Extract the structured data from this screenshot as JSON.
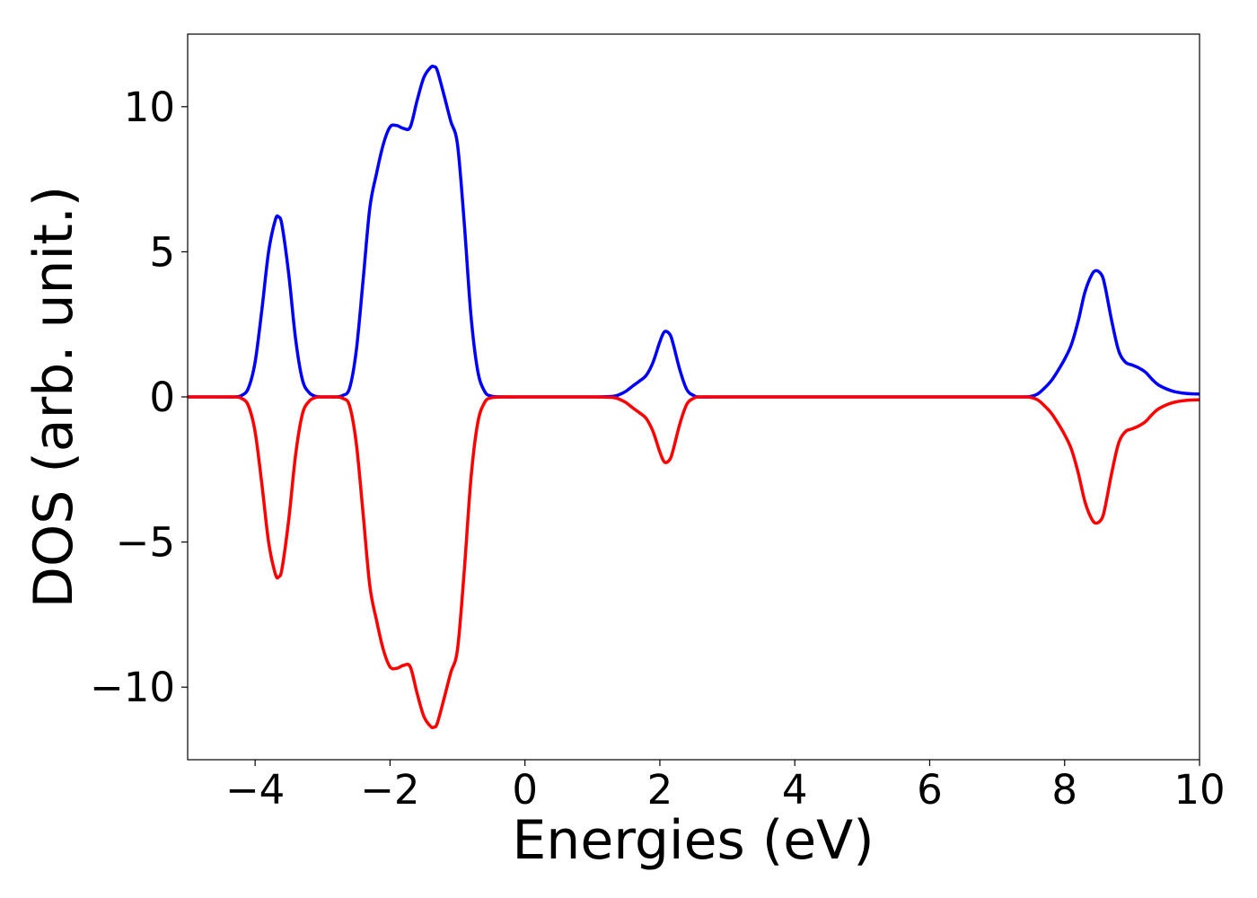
{
  "chart_data": {
    "type": "line",
    "title": "",
    "xlabel": "Energies (eV)",
    "ylabel": "DOS (arb. unit.)",
    "xlim": [
      -5,
      10
    ],
    "ylim": [
      -12.5,
      12.5
    ],
    "xticks": [
      -4,
      -2,
      0,
      2,
      4,
      6,
      8,
      10
    ],
    "xtick_labels": [
      "−4",
      "−2",
      "0",
      "2",
      "4",
      "6",
      "8",
      "10"
    ],
    "yticks": [
      -10,
      -5,
      0,
      5,
      10
    ],
    "ytick_labels": [
      "−10",
      "−5",
      "0",
      "5",
      "10"
    ],
    "grid": false,
    "legend": "none",
    "series": [
      {
        "color": "#0000ff",
        "x": [
          -5.0,
          -4.5,
          -4.3,
          -4.2,
          -4.1,
          -4.0,
          -3.9,
          -3.8,
          -3.7,
          -3.65,
          -3.6,
          -3.5,
          -3.4,
          -3.3,
          -3.2,
          -3.1,
          -3.0,
          -2.9,
          -2.8,
          -2.7,
          -2.6,
          -2.5,
          -2.4,
          -2.3,
          -2.2,
          -2.1,
          -2.0,
          -1.9,
          -1.8,
          -1.7,
          -1.6,
          -1.5,
          -1.4,
          -1.35,
          -1.3,
          -1.2,
          -1.1,
          -1.0,
          -0.9,
          -0.8,
          -0.7,
          -0.6,
          -0.5,
          -0.3,
          0.0,
          0.5,
          1.0,
          1.3,
          1.4,
          1.5,
          1.6,
          1.7,
          1.8,
          1.9,
          2.0,
          2.07,
          2.15,
          2.2,
          2.3,
          2.4,
          2.5,
          2.6,
          3.0,
          5.0,
          7.0,
          7.4,
          7.5,
          7.6,
          7.7,
          7.8,
          7.9,
          8.0,
          8.1,
          8.2,
          8.3,
          8.4,
          8.47,
          8.55,
          8.6,
          8.7,
          8.8,
          8.9,
          9.0,
          9.1,
          9.2,
          9.3,
          9.4,
          9.6,
          9.8,
          10.0
        ],
        "y": [
          0.0,
          0.0,
          0.0,
          0.05,
          0.3,
          1.2,
          3.0,
          5.0,
          6.1,
          6.2,
          5.9,
          4.2,
          2.0,
          0.6,
          0.15,
          0.02,
          0.0,
          0.0,
          0.0,
          0.05,
          0.3,
          1.6,
          4.0,
          6.5,
          7.7,
          8.7,
          9.3,
          9.35,
          9.25,
          9.3,
          10.2,
          11.0,
          11.35,
          11.38,
          11.25,
          10.4,
          9.5,
          8.7,
          6.0,
          2.8,
          0.9,
          0.2,
          0.03,
          0.0,
          0.0,
          0.0,
          0.0,
          0.02,
          0.08,
          0.2,
          0.38,
          0.55,
          0.75,
          1.2,
          1.9,
          2.25,
          2.15,
          1.8,
          0.9,
          0.25,
          0.05,
          0.0,
          0.0,
          0.0,
          0.0,
          0.0,
          0.02,
          0.1,
          0.3,
          0.55,
          0.9,
          1.3,
          1.8,
          2.6,
          3.6,
          4.2,
          4.35,
          4.2,
          3.8,
          2.6,
          1.6,
          1.2,
          1.1,
          1.0,
          0.85,
          0.6,
          0.4,
          0.2,
          0.12,
          0.1
        ]
      },
      {
        "color": "#ff0000",
        "x": [
          -5.0,
          -4.5,
          -4.3,
          -4.2,
          -4.1,
          -4.0,
          -3.9,
          -3.8,
          -3.7,
          -3.65,
          -3.6,
          -3.5,
          -3.4,
          -3.3,
          -3.2,
          -3.1,
          -3.0,
          -2.9,
          -2.8,
          -2.7,
          -2.6,
          -2.5,
          -2.4,
          -2.3,
          -2.2,
          -2.1,
          -2.0,
          -1.9,
          -1.8,
          -1.7,
          -1.6,
          -1.5,
          -1.4,
          -1.35,
          -1.3,
          -1.2,
          -1.1,
          -1.0,
          -0.9,
          -0.8,
          -0.7,
          -0.6,
          -0.5,
          -0.3,
          0.0,
          0.5,
          1.0,
          1.3,
          1.4,
          1.5,
          1.6,
          1.7,
          1.8,
          1.9,
          2.0,
          2.07,
          2.15,
          2.2,
          2.3,
          2.4,
          2.5,
          2.6,
          3.0,
          5.0,
          7.0,
          7.4,
          7.5,
          7.6,
          7.7,
          7.8,
          7.9,
          8.0,
          8.1,
          8.2,
          8.3,
          8.4,
          8.47,
          8.55,
          8.6,
          8.7,
          8.8,
          8.9,
          9.0,
          9.1,
          9.2,
          9.3,
          9.4,
          9.6,
          9.8,
          10.0
        ],
        "y": [
          0.0,
          0.0,
          0.0,
          -0.05,
          -0.3,
          -1.2,
          -3.0,
          -5.0,
          -6.1,
          -6.2,
          -5.9,
          -4.2,
          -2.0,
          -0.6,
          -0.15,
          -0.02,
          0.0,
          0.0,
          0.0,
          -0.05,
          -0.3,
          -1.6,
          -4.0,
          -6.5,
          -7.7,
          -8.7,
          -9.3,
          -9.35,
          -9.25,
          -9.3,
          -10.2,
          -11.0,
          -11.35,
          -11.38,
          -11.25,
          -10.4,
          -9.5,
          -8.7,
          -6.0,
          -2.8,
          -0.9,
          -0.2,
          -0.03,
          0.0,
          0.0,
          0.0,
          0.0,
          -0.02,
          -0.08,
          -0.2,
          -0.38,
          -0.55,
          -0.75,
          -1.2,
          -1.9,
          -2.25,
          -2.15,
          -1.8,
          -0.9,
          -0.25,
          -0.05,
          0.0,
          0.0,
          0.0,
          0.0,
          0.0,
          -0.02,
          -0.1,
          -0.3,
          -0.55,
          -0.9,
          -1.3,
          -1.8,
          -2.6,
          -3.6,
          -4.2,
          -4.35,
          -4.2,
          -3.8,
          -2.6,
          -1.6,
          -1.2,
          -1.1,
          -1.0,
          -0.85,
          -0.6,
          -0.4,
          -0.2,
          -0.12,
          -0.1
        ]
      }
    ]
  }
}
